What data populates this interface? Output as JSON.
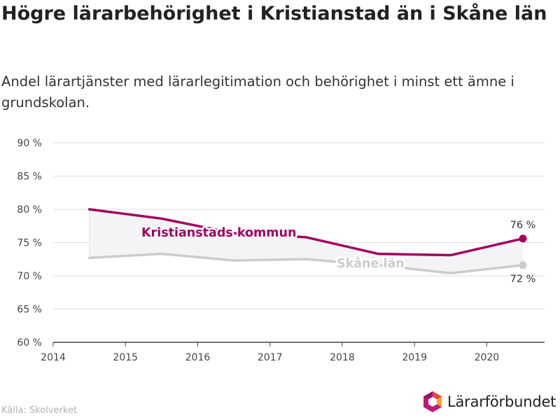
{
  "title": "Högre lärarbehörighet i Kristianstad än i Skåne län",
  "subtitle": "Andel lärartjänster med lärarlegitimation och behörighet i minst ett ämne i grundskolan.",
  "source": "Källa: Skolverket",
  "brand": {
    "name": "Lärarförbundet",
    "icon": "lararforbundet-hexagon-logo-icon"
  },
  "colors": {
    "kristianstad": "#a3005f",
    "skane": "#cccccc",
    "band": "#f4f4f6",
    "grid": "#dedede"
  },
  "chart_data": {
    "type": "line",
    "x": [
      2014.5,
      2015.5,
      2016.5,
      2017.5,
      2018.5,
      2019.5,
      2020.5
    ],
    "xlim": [
      2014,
      2020.8
    ],
    "xticks": [
      2014,
      2015,
      2016,
      2017,
      2018,
      2019,
      2020
    ],
    "xtick_labels": [
      "2014",
      "2015",
      "2016",
      "2017",
      "2018",
      "2019",
      "2020"
    ],
    "ylim": [
      60,
      90
    ],
    "yticks": [
      60,
      65,
      70,
      75,
      80,
      85,
      90
    ],
    "ytick_labels": [
      "60 %",
      "65 %",
      "70 %",
      "75 %",
      "80 %",
      "85 %",
      "90 %"
    ],
    "grid": true,
    "series": [
      {
        "name": "Kristianstads kommun",
        "values": [
          80.0,
          78.6,
          76.4,
          75.8,
          73.3,
          73.1,
          75.6
        ],
        "end_label": "76 %"
      },
      {
        "name": "Skåne län",
        "values": [
          72.7,
          73.3,
          72.3,
          72.5,
          71.6,
          70.4,
          71.6
        ],
        "end_label": "72 %"
      }
    ]
  }
}
